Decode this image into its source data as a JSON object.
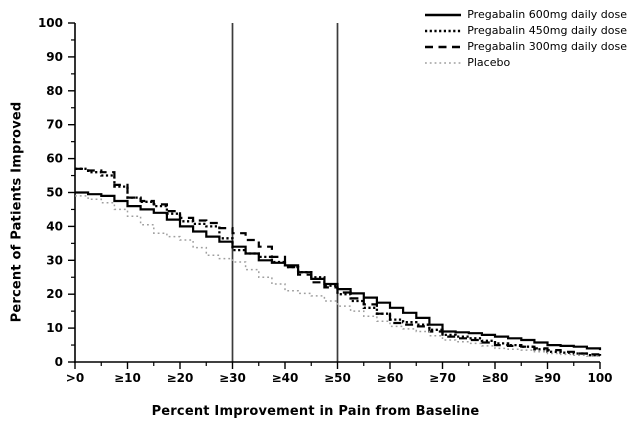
{
  "figure": {
    "x_axis_title": "Percent Improvement in Pain from Baseline",
    "y_axis_title": "Percent of Patients Improved"
  },
  "chart_data": {
    "type": "line",
    "subtype": "step",
    "title": "",
    "xlabel": "Percent Improvement in Pain from Baseline",
    "ylabel": "Percent of Patients Improved",
    "xlim": [
      0,
      100
    ],
    "ylim": [
      0,
      100
    ],
    "grid": false,
    "legend_position": "top-right",
    "x_tick_labels": [
      ">0",
      "≥10",
      "≥20",
      "≥30",
      "≥40",
      "≥50",
      "≥60",
      "≥70",
      "≥80",
      "≥90",
      "100"
    ],
    "x_tick_values": [
      0,
      10,
      20,
      30,
      40,
      50,
      60,
      70,
      80,
      90,
      100
    ],
    "y_tick_labels": [
      "0",
      "10",
      "20",
      "30",
      "40",
      "50",
      "60",
      "70",
      "80",
      "90",
      "100"
    ],
    "y_tick_values": [
      0,
      10,
      20,
      30,
      40,
      50,
      60,
      70,
      80,
      90,
      100
    ],
    "minor_tick_step": 5,
    "reference_lines_x": [
      30,
      50
    ],
    "x": [
      0,
      5,
      10,
      15,
      20,
      25,
      30,
      35,
      40,
      45,
      50,
      55,
      60,
      65,
      70,
      75,
      80,
      85,
      90,
      95,
      100
    ],
    "series": [
      {
        "name": "Pregabalin 600mg daily dose",
        "style": "solid",
        "color": "#000000",
        "values": [
          50,
          49,
          46,
          44,
          40,
          37,
          34,
          30,
          28.5,
          24.5,
          21.5,
          19,
          16,
          13,
          9,
          8.5,
          7.5,
          6.5,
          5,
          4.5,
          3.5
        ]
      },
      {
        "name": "Pregabalin 450mg daily dose",
        "style": "dense-dotted",
        "color": "#000000",
        "values": [
          57,
          55,
          48.5,
          46,
          41.5,
          40,
          33,
          31,
          28,
          25,
          20,
          16,
          12.5,
          11,
          8,
          7,
          5.5,
          4.5,
          3,
          2.5,
          1.5
        ]
      },
      {
        "name": "Pregabalin 300mg daily dose",
        "style": "dashed",
        "color": "#000000",
        "values": [
          57,
          56,
          48.5,
          46.5,
          42.5,
          41,
          38,
          34,
          28,
          23.5,
          20.5,
          17,
          11.5,
          10.5,
          7.5,
          6.5,
          5,
          4.5,
          3.5,
          2.5,
          2
        ]
      },
      {
        "name": "Placebo",
        "style": "light-dotted",
        "color": "#9f9f9f",
        "values": [
          49,
          47,
          43,
          38,
          36,
          31.5,
          29.5,
          25,
          21,
          19.5,
          16.5,
          13.5,
          10.5,
          9,
          6.5,
          5.5,
          4,
          3.5,
          2.5,
          2,
          1.5
        ]
      }
    ]
  }
}
